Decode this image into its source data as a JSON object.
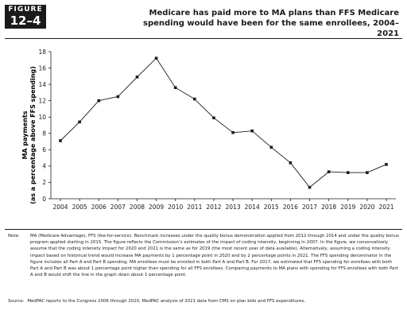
{
  "figure": {
    "label": "FIGURE",
    "number": "12–4"
  },
  "title_line1": "Medicare has paid more to MA plans than FFS Medicare",
  "title_line2": "spending would have been for the same enrollees, 2004–2021",
  "chart_data": {
    "type": "line",
    "title": "Medicare has paid more to MA plans than FFS Medicare spending would have been for the same enrollees, 2004–2021",
    "ylabel_line1": "MA payments",
    "ylabel_line2": "(as a percentage above FFS spending)",
    "xlabel": "",
    "x": [
      "2004",
      "2005",
      "2006",
      "2007",
      "2008",
      "2009",
      "2010",
      "2011",
      "2012",
      "2013",
      "2014",
      "2015",
      "2016",
      "2017",
      "2018",
      "2019",
      "2020",
      "2021"
    ],
    "values": [
      7.1,
      9.4,
      12.0,
      12.5,
      14.9,
      17.2,
      13.6,
      12.2,
      9.9,
      8.1,
      8.3,
      6.3,
      4.4,
      1.4,
      3.3,
      3.2,
      3.2,
      4.2
    ],
    "ylim": [
      0,
      18
    ],
    "yticks": [
      "0",
      "2",
      "4",
      "6",
      "8",
      "10",
      "12",
      "14",
      "16",
      "18"
    ],
    "grid": false,
    "legend": "none"
  },
  "note": {
    "label": "Note:",
    "text": "MA (Medicare Advantage), FFS (fee-for-service). Benchmark increases under the quality bonus demonstration applied from 2012 through 2014 and under the quality bonus program applied starting in 2015. The figure reflects the Commission’s estimates of the impact of coding intensity, beginning in 2007. In the figure, we conservatively assume that the coding intensity impact for 2020 and 2021 is the same as for 2019 (the most recent year of data available). Alternatively, assuming a coding intensity impact based on historical trend would increase MA payments by 1 percentage point in 2020 and by 2 percentage points in 2021. The FFS spending denominator in the figure includes all Part A and Part B spending. MA enrollees must be enrolled in both Part A and Part B. For 2017, we estimated that FFS spending for enrollees with both Part A and Part B was about 1 percentage point higher than spending for all FFS enrollees. Comparing payments to MA plans with spending for FFS enrollees with both Part A and B would shift the line in the graph down about 1 percentage point."
  },
  "source": {
    "label": "Source:",
    "text": "MedPAC reports to the Congress 2006 through 2020, MedPAC analysis of 2021 data from CMS on plan bids and FFS expenditures."
  }
}
